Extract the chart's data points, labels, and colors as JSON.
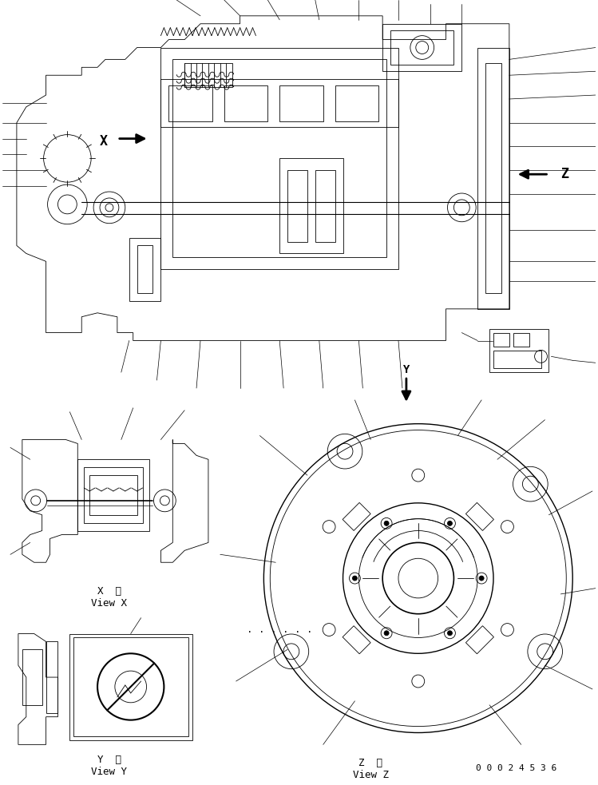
{
  "bg_color": "#ffffff",
  "line_color": "#000000",
  "page_number": "0 0 0 2 4 5 3 6",
  "view_x_label": "X  視\nView X",
  "view_y_label": "Y  視\nView Y",
  "view_z_label": "Z  視\nView Z",
  "arrow_x_text": "X",
  "arrow_z_text": "Z",
  "arrow_y_text": "Y",
  "fig_width": 7.49,
  "fig_height": 9.83,
  "dpi": 100
}
